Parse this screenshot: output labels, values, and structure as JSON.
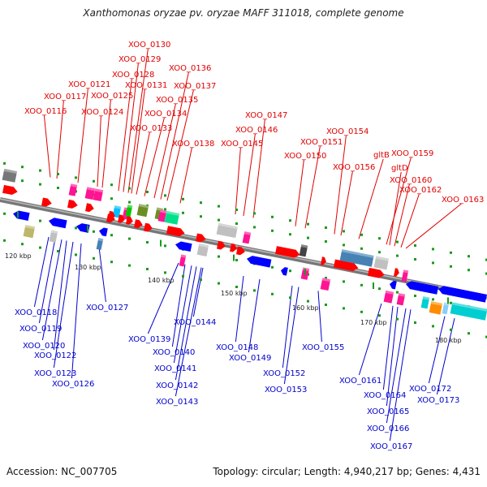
{
  "title": "Xanthomonas oryzae pv. oryzae MAFF 311018, complete genome",
  "footer": {
    "accession": "Accession: NC_007705",
    "summary": "Topology: circular; Length: 4,940,217 bp; Genes: 4,431"
  },
  "colors": {
    "top_label": "#e00000",
    "bottom_label": "#0000cc",
    "forward_gene": "#ff0000",
    "reverse_gene": "#0000ff"
  },
  "ticks": [
    "120 kbp",
    "130 kbp",
    "140 kbp",
    "150 kbp",
    "160 kbp",
    "170 kbp",
    "180 kbp"
  ],
  "top_labels": [
    "XOO_0116",
    "XOO_0117",
    "XOO_0121",
    "XOO_0124",
    "XOO_0125",
    "XOO_0128",
    "XOO_0129",
    "XOO_0130",
    "XOO_0131",
    "XOO_0133",
    "XOO_0134",
    "XOO_0135",
    "XOO_0136",
    "XOO_0137",
    "XOO_0138",
    "XOO_0145",
    "XOO_0146",
    "XOO_0147",
    "XOO_0150",
    "XOO_0151",
    "XOO_0154",
    "XOO_0156",
    "gltB",
    "XOO_0159",
    "gltD",
    "XOO_0160",
    "XOO_0162",
    "XOO_0163"
  ],
  "bottom_labels": [
    "XOO_0118",
    "XOO_0119",
    "XOO_0120",
    "XOO_0122",
    "XOO_0123",
    "XOO_0126",
    "XOO_0127",
    "XOO_0139",
    "XOO_0140",
    "XOO_0141",
    "XOO_0142",
    "XOO_0143",
    "XOO_0144",
    "XOO_0148",
    "XOO_0149",
    "XOO_0152",
    "XOO_0153",
    "XOO_0155",
    "XOO_0161",
    "XOO_0164",
    "XOO_0165",
    "XOO_0166",
    "XOO_0167",
    "XOO_0172",
    "XOO_0173"
  ]
}
